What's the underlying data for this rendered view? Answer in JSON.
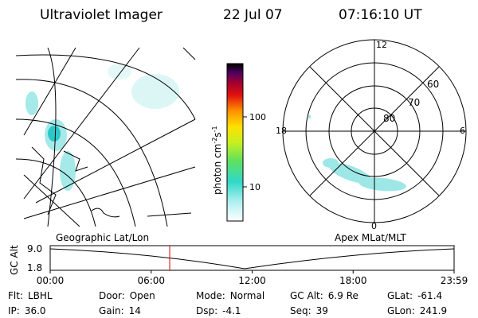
{
  "header": {
    "title": "Ultraviolet Imager",
    "date": "22 Jul 07",
    "time": "07:16:10 UT"
  },
  "map": {
    "label": "Geographic Lat/Lon"
  },
  "colorbar": {
    "unit": "photon cm",
    "exp1": "-2",
    "unit2": "s",
    "exp2": "-1",
    "ticks": [
      "100",
      "10"
    ]
  },
  "polar": {
    "label": "Apex MLat/MLT",
    "lat_labels": [
      "60",
      "70",
      "80"
    ],
    "mlt_labels": [
      "12",
      "18",
      "6",
      "0"
    ]
  },
  "timeline": {
    "y_label": "GC Alt",
    "y_ticks": [
      "9.0",
      "1.8"
    ],
    "x_ticks": [
      "00:00",
      "06:00",
      "12:00",
      "18:00",
      "23:59"
    ]
  },
  "info": {
    "rows": [
      [
        {
          "label": "Flt:",
          "value": "LBHL"
        },
        {
          "label": "Door:",
          "value": "Open"
        },
        {
          "label": "Mode:",
          "value": "Normal"
        },
        {
          "label": "GC Alt:",
          "value": "6.9 Re"
        },
        {
          "label": "GLat:",
          "value": "-61.4"
        }
      ],
      [
        {
          "label": "IP:",
          "value": "36.0"
        },
        {
          "label": "Gain:",
          "value": "14"
        },
        {
          "label": "Dsp:",
          "value": "-4.1"
        },
        {
          "label": "Seq:",
          "value": "39"
        },
        {
          "label": "GLon:",
          "value": "241.9"
        }
      ]
    ]
  }
}
